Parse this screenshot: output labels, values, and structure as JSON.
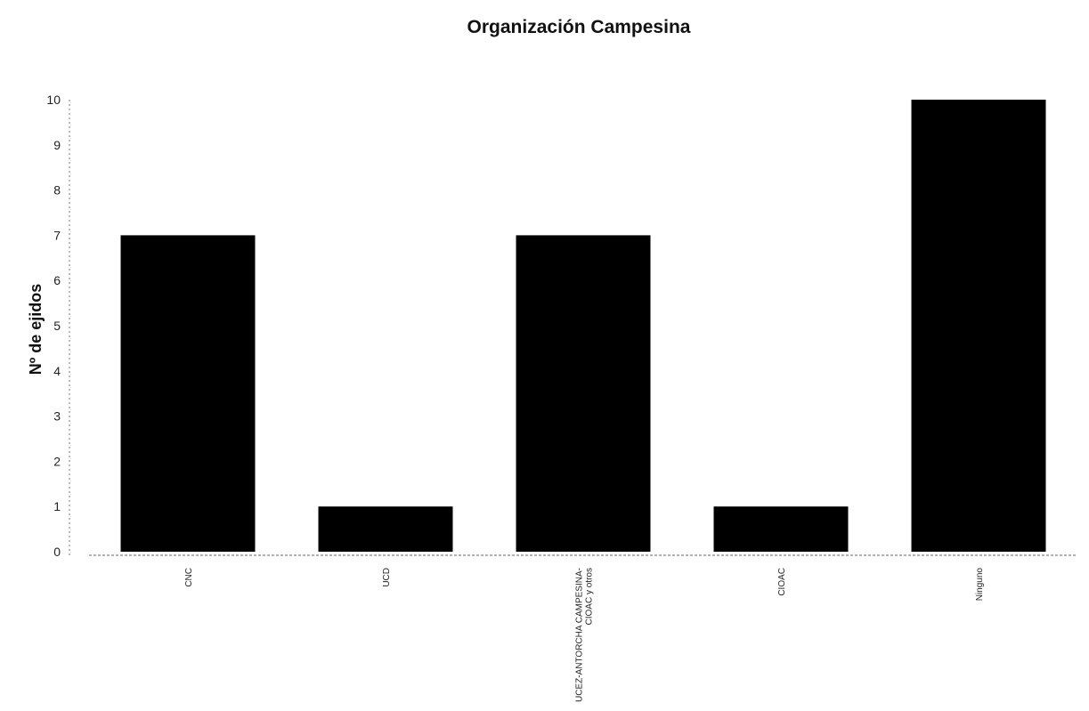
{
  "chart_data": {
    "type": "bar",
    "title": "Organización Campesina",
    "xlabel": "",
    "ylabel": "Nº de ejidos",
    "ylim": [
      0,
      10
    ],
    "y_ticks": [
      0,
      1,
      2,
      3,
      4,
      5,
      6,
      7,
      8,
      9,
      10
    ],
    "categories": [
      "CNC",
      "UCD",
      "UCEZ-ANTORCHA CAMPESINA-CIOAC y otros",
      "CIOAC",
      "Ninguno"
    ],
    "category_lines": [
      [
        "CNC"
      ],
      [
        "UCD"
      ],
      [
        "UCEZ-ANTORCHA CAMPESINA-",
        "CIOAC y otros"
      ],
      [
        "CIOAC"
      ],
      [
        "Ninguno"
      ]
    ],
    "values": [
      7,
      1,
      7,
      1,
      10
    ],
    "bar_color": "#000000",
    "grid": false,
    "legend": "none"
  }
}
